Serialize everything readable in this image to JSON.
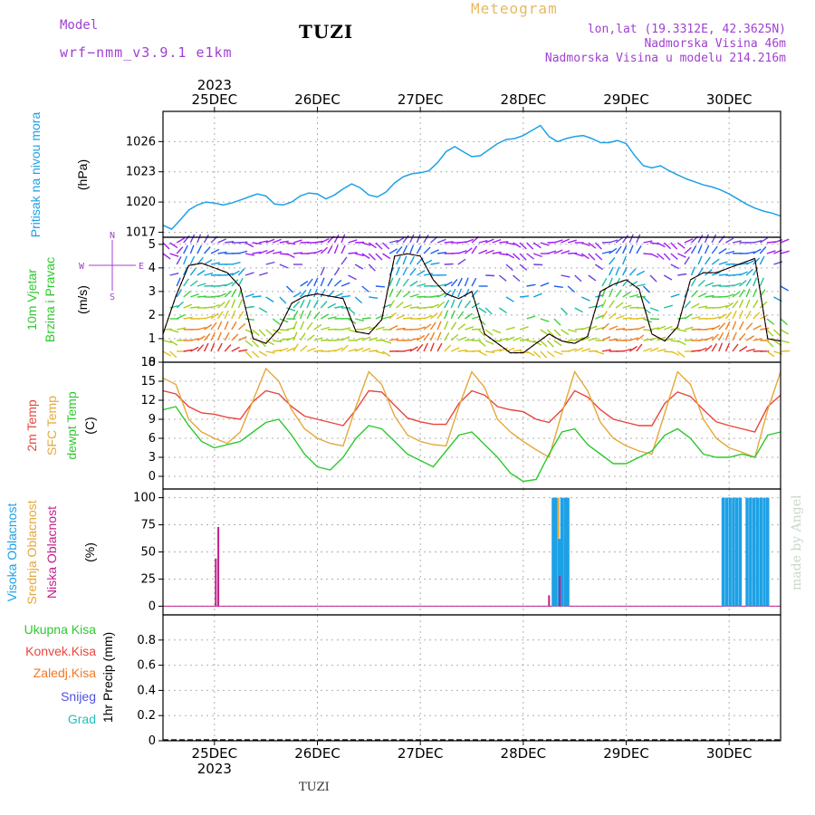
{
  "header": {
    "model_label": "Model",
    "model_name": "wrf−nmm_v3.9.1  e1km",
    "station": "TUZI",
    "product": "Meteogram",
    "lonlat": "lon,lat (19.3312E, 42.3625N)",
    "elev": "Nadmorska Visina 46m",
    "elev_model": "Nadmorska Visina u modelu 214.216m",
    "footer_station": "TUZI",
    "credit": "made by Angel"
  },
  "time_axis": {
    "year": "2023",
    "dates": [
      "25DEC",
      "26DEC",
      "27DEC",
      "28DEC",
      "29DEC",
      "30DEC"
    ],
    "start_hour": -12,
    "end_hour": 132
  },
  "colors": {
    "pressure": "#1da1e6",
    "temp2m": "#e8453c",
    "sfc": "#e5a83a",
    "dewpt": "#2ec82e",
    "wind_label": "#2ec82e",
    "rose": "#a040d0",
    "high_cloud": "#1da1e6",
    "mid_cloud": "#e5a83a",
    "low_cloud": "#c0208a",
    "precip_total": "#2ec82e",
    "precip_conv": "#e8453c",
    "precip_frz": "#f07820",
    "snow": "#5050e0",
    "graupel": "#20c0c0"
  },
  "panels": {
    "pressure": {
      "label": "Pritisak na nivou mora",
      "unit": "(hPa)"
    },
    "wind": {
      "label1": "10m Vjetar",
      "label2": "Brzina i Pravac",
      "unit": "(m/s)",
      "rose": {
        "n": "N",
        "s": "S",
        "e": "E",
        "w": "W"
      }
    },
    "temp": {
      "label1": "2m Temp",
      "label2": "SFC Temp",
      "label3": "dewpt Temp",
      "unit": "(C)"
    },
    "cloud": {
      "label1": "Visoka Oblacnost",
      "label2": "Srednja Oblacnost",
      "label3": "Niska Oblacnost",
      "unit": "(%)"
    },
    "precip": {
      "label1": "Ukupna Kisa",
      "label2": "Konvek.Kisa",
      "label3": "Zaledj.Kisa",
      "label4": "Snijeg",
      "label5": "Grad",
      "unit": "1hr Precip (mm)"
    }
  },
  "chart_data": [
    {
      "type": "line",
      "name": "pressure",
      "ylim": [
        1016.5,
        1029
      ],
      "yticks": [
        1017,
        1020,
        1023,
        1026
      ],
      "series": [
        {
          "name": "Pritisak na nivou mora",
          "x": [
            -12,
            -10,
            -8,
            -6,
            -4,
            -2,
            0,
            2,
            4,
            6,
            8,
            10,
            12,
            14,
            16,
            18,
            20,
            22,
            24,
            26,
            28,
            30,
            32,
            34,
            36,
            38,
            40,
            42,
            44,
            46,
            48,
            50,
            52,
            54,
            56,
            58,
            60,
            62,
            64,
            66,
            68,
            70,
            72,
            74,
            76,
            78,
            80,
            82,
            84,
            86,
            88,
            90,
            92,
            94,
            96,
            98,
            100,
            102,
            104,
            106,
            108,
            110,
            112,
            114,
            116,
            118,
            120,
            122,
            124,
            126,
            128,
            130,
            132
          ],
          "values": [
            1017.7,
            1017.3,
            1018.2,
            1019.2,
            1019.7,
            1020.0,
            1019.9,
            1019.7,
            1019.9,
            1020.2,
            1020.5,
            1020.8,
            1020.6,
            1019.8,
            1019.7,
            1020.0,
            1020.6,
            1020.9,
            1020.8,
            1020.3,
            1020.7,
            1021.3,
            1021.8,
            1021.4,
            1020.7,
            1020.5,
            1021.0,
            1021.9,
            1022.5,
            1022.8,
            1022.9,
            1023.1,
            1023.9,
            1025.0,
            1025.5,
            1025.0,
            1024.5,
            1024.6,
            1025.2,
            1025.8,
            1026.2,
            1026.3,
            1026.6,
            1027.1,
            1027.6,
            1026.5,
            1026.0,
            1026.3,
            1026.5,
            1026.6,
            1026.3,
            1025.9,
            1025.9,
            1026.1,
            1025.8,
            1024.6,
            1023.6,
            1023.4,
            1023.6,
            1023.1,
            1022.7,
            1022.3,
            1022.0,
            1021.7,
            1021.5,
            1021.2,
            1020.8,
            1020.3,
            1019.8,
            1019.4,
            1019.1,
            1018.9,
            1018.6
          ]
        }
      ]
    },
    {
      "type": "line",
      "name": "wind",
      "ylim": [
        0,
        5.3
      ],
      "yticks": [
        0,
        1,
        2,
        3,
        4,
        5
      ],
      "series": [
        {
          "name": "10m Vjetar",
          "x": [
            -12,
            -9,
            -6,
            -3,
            0,
            3,
            6,
            9,
            12,
            15,
            18,
            21,
            24,
            27,
            30,
            33,
            36,
            39,
            42,
            45,
            48,
            51,
            54,
            57,
            60,
            63,
            66,
            69,
            72,
            75,
            78,
            81,
            84,
            87,
            90,
            93,
            96,
            99,
            102,
            105,
            108,
            111,
            114,
            117,
            120,
            123,
            126,
            129,
            132
          ],
          "values": [
            1.2,
            2.8,
            4.1,
            4.2,
            4.0,
            3.8,
            3.2,
            1.0,
            0.8,
            1.4,
            2.5,
            2.8,
            2.9,
            2.8,
            2.7,
            1.3,
            1.2,
            1.8,
            4.5,
            4.6,
            4.5,
            3.5,
            2.9,
            2.7,
            3.0,
            1.2,
            0.8,
            0.4,
            0.4,
            0.8,
            1.2,
            0.9,
            0.8,
            1.1,
            3.0,
            3.3,
            3.5,
            3.1,
            1.2,
            0.9,
            1.5,
            3.5,
            3.8,
            3.8,
            4.0,
            4.2,
            4.4,
            1.0,
            0.9
          ]
        }
      ]
    },
    {
      "type": "line",
      "name": "temperature",
      "ylim": [
        -2,
        18
      ],
      "yticks": [
        0,
        3,
        6,
        9,
        12,
        15,
        18
      ],
      "x": [
        -12,
        -9,
        -6,
        -3,
        0,
        3,
        6,
        9,
        12,
        15,
        18,
        21,
        24,
        27,
        30,
        33,
        36,
        39,
        42,
        45,
        48,
        51,
        54,
        57,
        60,
        63,
        66,
        69,
        72,
        75,
        78,
        81,
        84,
        87,
        90,
        93,
        96,
        99,
        102,
        105,
        108,
        111,
        114,
        117,
        120,
        123,
        126,
        129,
        132
      ],
      "series": [
        {
          "name": "2m Temp",
          "values": [
            13.5,
            13.0,
            11.0,
            10.0,
            9.8,
            9.3,
            9.0,
            11.8,
            13.5,
            13.0,
            11.0,
            9.5,
            9.0,
            8.5,
            8.0,
            10.5,
            13.5,
            13.3,
            11.2,
            9.2,
            8.6,
            8.2,
            8.2,
            11.5,
            13.5,
            12.8,
            11.0,
            10.5,
            10.2,
            9.0,
            8.5,
            10.5,
            13.5,
            12.5,
            10.5,
            9.0,
            8.5,
            8.0,
            8.0,
            11.5,
            13.3,
            12.6,
            10.5,
            8.6,
            8.0,
            7.5,
            7.0,
            11.0,
            12.8
          ]
        },
        {
          "name": "SFC Temp",
          "values": [
            15.5,
            14.5,
            9.0,
            7.0,
            6.0,
            5.2,
            7.0,
            12.0,
            17.0,
            15.0,
            10.5,
            7.5,
            6.0,
            5.2,
            4.8,
            11.0,
            16.5,
            14.5,
            9.5,
            6.5,
            5.5,
            5.0,
            4.8,
            11.0,
            16.5,
            14.0,
            9.0,
            7.0,
            5.5,
            4.2,
            3.0,
            10.0,
            16.5,
            13.5,
            8.5,
            6.0,
            4.8,
            4.0,
            3.5,
            10.0,
            16.5,
            14.5,
            9.0,
            6.0,
            4.5,
            3.8,
            3.0,
            10.5,
            16.5
          ]
        },
        {
          "name": "dewpt Temp",
          "values": [
            10.5,
            11.0,
            8.0,
            5.5,
            4.5,
            5.0,
            5.5,
            7.0,
            8.5,
            9.0,
            6.5,
            3.5,
            1.5,
            1.0,
            3.0,
            6.0,
            8.0,
            7.5,
            5.5,
            3.5,
            2.5,
            1.5,
            4.0,
            6.5,
            7.0,
            5.0,
            3.0,
            0.5,
            -0.8,
            -0.5,
            3.5,
            7.0,
            7.5,
            5.0,
            3.5,
            2.0,
            2.0,
            3.0,
            4.0,
            6.5,
            7.5,
            6.0,
            3.5,
            3.0,
            3.0,
            3.5,
            3.0,
            6.5,
            7.0
          ]
        }
      ]
    },
    {
      "type": "bar",
      "name": "cloud cover",
      "ylim": [
        -8,
        108
      ],
      "yticks": [
        0,
        25,
        50,
        75,
        100
      ],
      "series": [
        {
          "name": "Niska Oblacnost",
          "x": [
            0.3,
            0.9,
            78.0,
            80.5
          ],
          "values": [
            44,
            73,
            10,
            28
          ]
        },
        {
          "name": "Srednja Oblacnost",
          "x": [
            79.2,
            80.2,
            81.2,
            82.2
          ],
          "values": [
            100,
            100,
            100,
            100
          ]
        },
        {
          "name": "Visoka Oblacnost",
          "x": [
            79.0,
            79.6,
            80.4,
            81.0,
            81.8,
            82.4,
            118.6,
            119.4,
            120.2,
            121.0,
            121.8,
            122.6,
            124.2,
            125.0,
            125.8,
            126.6,
            127.4,
            128.2,
            129.0
          ],
          "values": [
            100,
            100,
            62,
            100,
            100,
            100,
            100,
            100,
            100,
            100,
            100,
            100,
            100,
            100,
            100,
            100,
            100,
            100,
            100
          ]
        }
      ]
    },
    {
      "type": "bar",
      "name": "precipitation",
      "ylim": [
        0,
        1.0
      ],
      "yticks": [
        0,
        0.2,
        0.4,
        0.6,
        0.8
      ],
      "series": [
        {
          "name": "Ukupna Kisa",
          "values": []
        },
        {
          "name": "Konvek.Kisa",
          "values": []
        },
        {
          "name": "Zaledj.Kisa",
          "values": []
        },
        {
          "name": "Snijeg",
          "values": []
        },
        {
          "name": "Grad",
          "values": []
        }
      ]
    }
  ]
}
